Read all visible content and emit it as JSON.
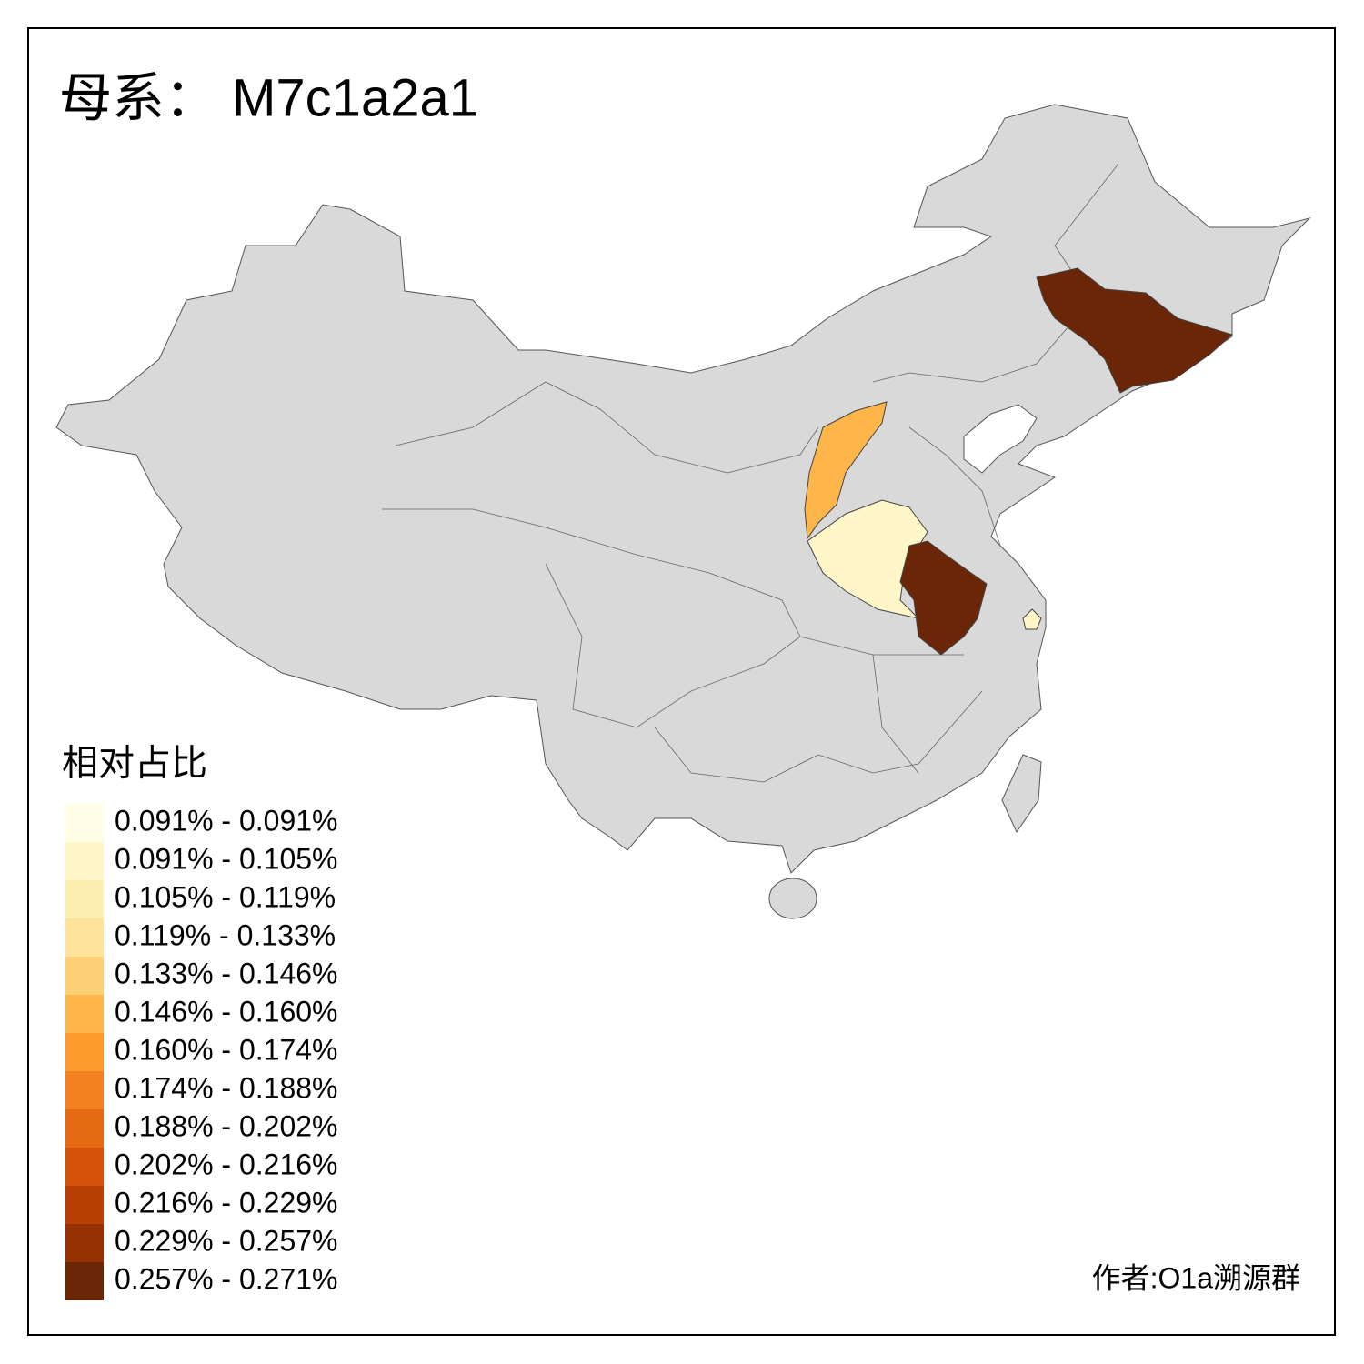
{
  "title": "母系： M7c1a2a1",
  "legend": {
    "title": "相对占比",
    "items": [
      {
        "label": "0.091% - 0.091%",
        "color": "#fffde3"
      },
      {
        "label": "0.091% - 0.105%",
        "color": "#fff7c8"
      },
      {
        "label": "0.105% - 0.119%",
        "color": "#feeeb0"
      },
      {
        "label": "0.119% - 0.133%",
        "color": "#fee39a"
      },
      {
        "label": "0.133% - 0.146%",
        "color": "#fed076"
      },
      {
        "label": "0.146% - 0.160%",
        "color": "#feb54a"
      },
      {
        "label": "0.160% - 0.174%",
        "color": "#fd9b2e"
      },
      {
        "label": "0.174% - 0.188%",
        "color": "#f4811f"
      },
      {
        "label": "0.188% - 0.202%",
        "color": "#e66a13"
      },
      {
        "label": "0.202% - 0.216%",
        "color": "#d4520a"
      },
      {
        "label": "0.216% - 0.229%",
        "color": "#b94005"
      },
      {
        "label": "0.229% - 0.257%",
        "color": "#963104"
      },
      {
        "label": "0.257% - 0.271%",
        "color": "#6a2607"
      }
    ]
  },
  "author": "作者:O1a溯源群"
}
